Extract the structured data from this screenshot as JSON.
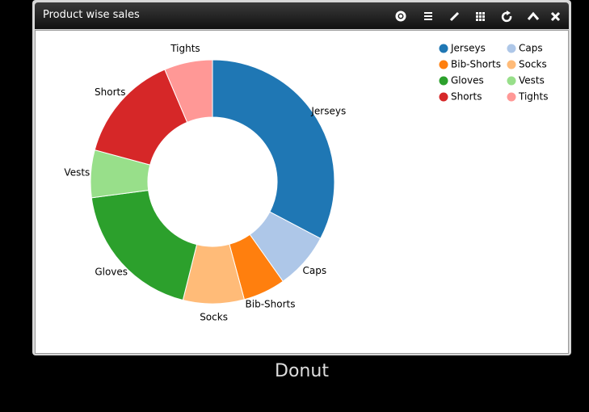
{
  "widget": {
    "title": "Product wise sales"
  },
  "caption": "Donut",
  "chart_data": {
    "type": "donut",
    "categories": [
      "Jerseys",
      "Caps",
      "Bib-Shorts",
      "Socks",
      "Gloves",
      "Vests",
      "Shorts",
      "Tights"
    ],
    "values": [
      32.7,
      7.5,
      5.6,
      8.1,
      19,
      6.3,
      14.4,
      6.4
    ],
    "colors": [
      "#1f77b4",
      "#aec7e8",
      "#ff7f0e",
      "#ffbb78",
      "#2ca02c",
      "#98df8a",
      "#d62728",
      "#ff9896"
    ],
    "legend": "top-right"
  }
}
